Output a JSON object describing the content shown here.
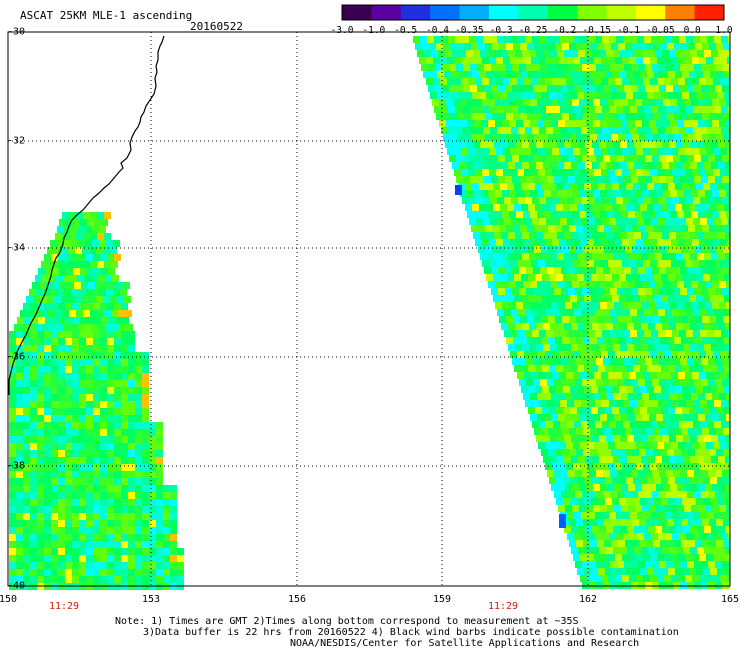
{
  "header": {
    "title": "ASCAT 25KM MLE-1 ascending",
    "date": "20160522"
  },
  "colorbar": {
    "labels": [
      "-3.0",
      "-1.0",
      "-0.5",
      "-0.4",
      "-0.35",
      "-0.3",
      "-0.25",
      "-0.2",
      "-0.15",
      "-0.1",
      "-0.05",
      "0.0",
      "1.0"
    ],
    "colors": [
      "#3a0050",
      "#5a00a0",
      "#2030e0",
      "#0070ff",
      "#00b0ff",
      "#00ffff",
      "#00ffb0",
      "#00ff40",
      "#80ff00",
      "#c0ff00",
      "#ffff00",
      "#ff8000",
      "#ff2000"
    ]
  },
  "map": {
    "lat_labels": [
      "-30",
      "-32",
      "-34",
      "-36",
      "-38",
      "-40"
    ],
    "lon_labels": [
      "150",
      "153",
      "156",
      "159",
      "162",
      "165"
    ],
    "pass_times": [
      "11:29",
      "11:29"
    ]
  },
  "notes": {
    "line1": "Note: 1) Times are GMT 2)Times along bottom correspond to measurement at ~35S",
    "line2": "3)Data buffer is 22 hrs from 20160522 4) Black wind barbs indicate possible contamination",
    "line3": "NOAA/NESDIS/Center for Satellite Applications and Research"
  }
}
